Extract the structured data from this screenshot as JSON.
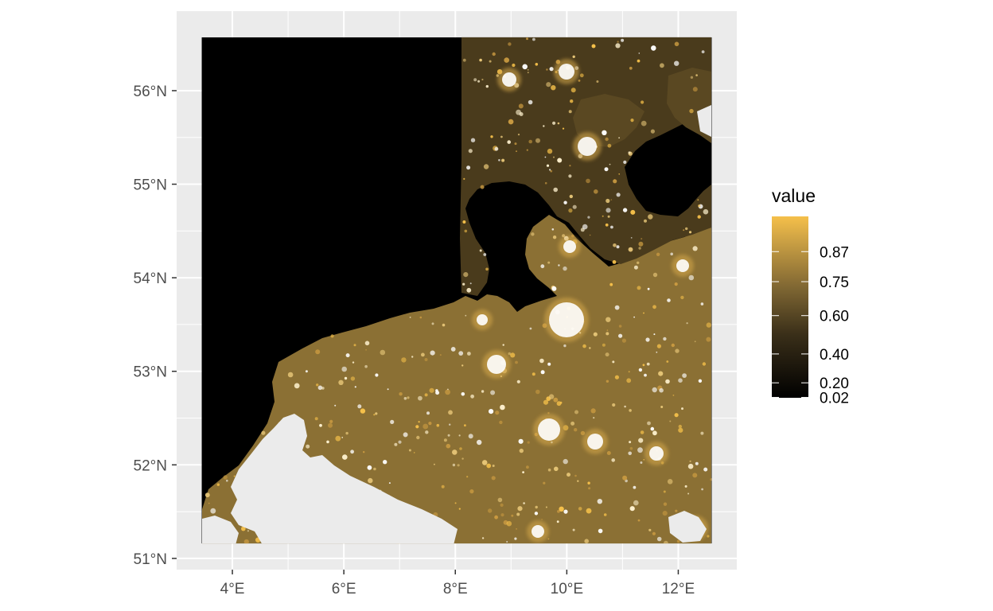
{
  "colors": {
    "panel_background": "#EBEBEB",
    "grid_line": "#FFFFFF",
    "raster_low": "#000000",
    "raster_mid": "#8F7337",
    "raster_high": "#F5C04A",
    "raster_na": "#EBEBEB"
  },
  "map": {
    "type": "raster",
    "description": "night-time lights intensity",
    "x_axis": {
      "unit": "degrees east",
      "ticks": [
        {
          "value": 4,
          "label": "4°E"
        },
        {
          "value": 6,
          "label": "6°E"
        },
        {
          "value": 8,
          "label": "8°E"
        },
        {
          "value": 10,
          "label": "10°E"
        },
        {
          "value": 12,
          "label": "12°E"
        }
      ],
      "raster_extent": [
        3.45,
        12.6
      ],
      "panel_range": [
        3.0,
        13.05
      ]
    },
    "y_axis": {
      "unit": "degrees north",
      "ticks": [
        {
          "value": 51,
          "label": "51°N"
        },
        {
          "value": 52,
          "label": "52°N"
        },
        {
          "value": 53,
          "label": "53°N"
        },
        {
          "value": 54,
          "label": "54°N"
        },
        {
          "value": 55,
          "label": "55°N"
        },
        {
          "value": 56,
          "label": "56°N"
        }
      ],
      "raster_extent": [
        51.16,
        56.57
      ],
      "panel_range": [
        50.88,
        56.85
      ]
    },
    "grid": true
  },
  "legend": {
    "title": "value",
    "position": "right",
    "scale": "non-linear",
    "breaks": [
      {
        "value": 0.87,
        "label": "0.87"
      },
      {
        "value": 0.75,
        "label": "0.75"
      },
      {
        "value": 0.6,
        "label": "0.60"
      },
      {
        "value": 0.4,
        "label": "0.40"
      },
      {
        "value": 0.2,
        "label": "0.20"
      },
      {
        "value": 0.02,
        "label": "0.02"
      }
    ]
  }
}
